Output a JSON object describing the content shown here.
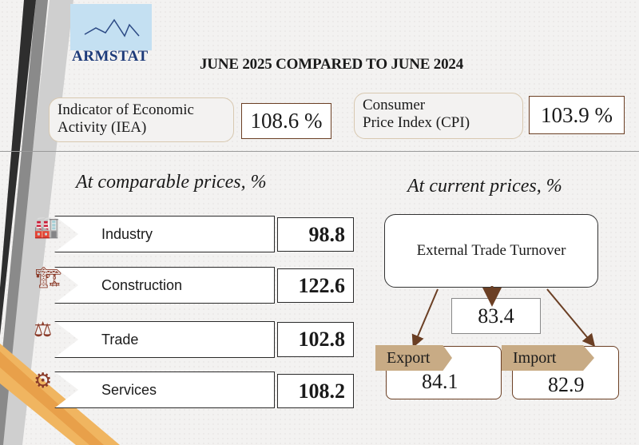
{
  "logo": {
    "name": "ARMSTAT"
  },
  "title": "JUNE 2025 COMPARED TO JUNE 2024",
  "indicators": [
    {
      "label_line1": "Indicator of Economic",
      "label_line2": "Activity (IEA)",
      "value": "108.6 %"
    },
    {
      "label_line1": "Consumer",
      "label_line2": "Price  Index (CPI)",
      "value": "103.9 %"
    }
  ],
  "comparable": {
    "title": "At comparable prices, %",
    "rows": [
      {
        "label": "Industry",
        "value": "98.8",
        "icon": "factory-icon"
      },
      {
        "label": "Construction",
        "value": "122.6",
        "icon": "crane-icon"
      },
      {
        "label": "Trade",
        "value": "102.8",
        "icon": "scales-icon"
      },
      {
        "label": "Services",
        "value": "108.2",
        "icon": "gears-hand-icon"
      }
    ]
  },
  "current": {
    "title": "At current prices, %",
    "turnover_label": "External Trade Turnover",
    "turnover_value": "83.4",
    "export_label": "Export",
    "export_value": "84.1",
    "import_label": "Import",
    "import_value": "82.9"
  },
  "colors": {
    "brown": "#6b3f24",
    "tag": "#c8ab85",
    "icon": "#8a3a28",
    "stripe_orange": "#e8a04a"
  }
}
